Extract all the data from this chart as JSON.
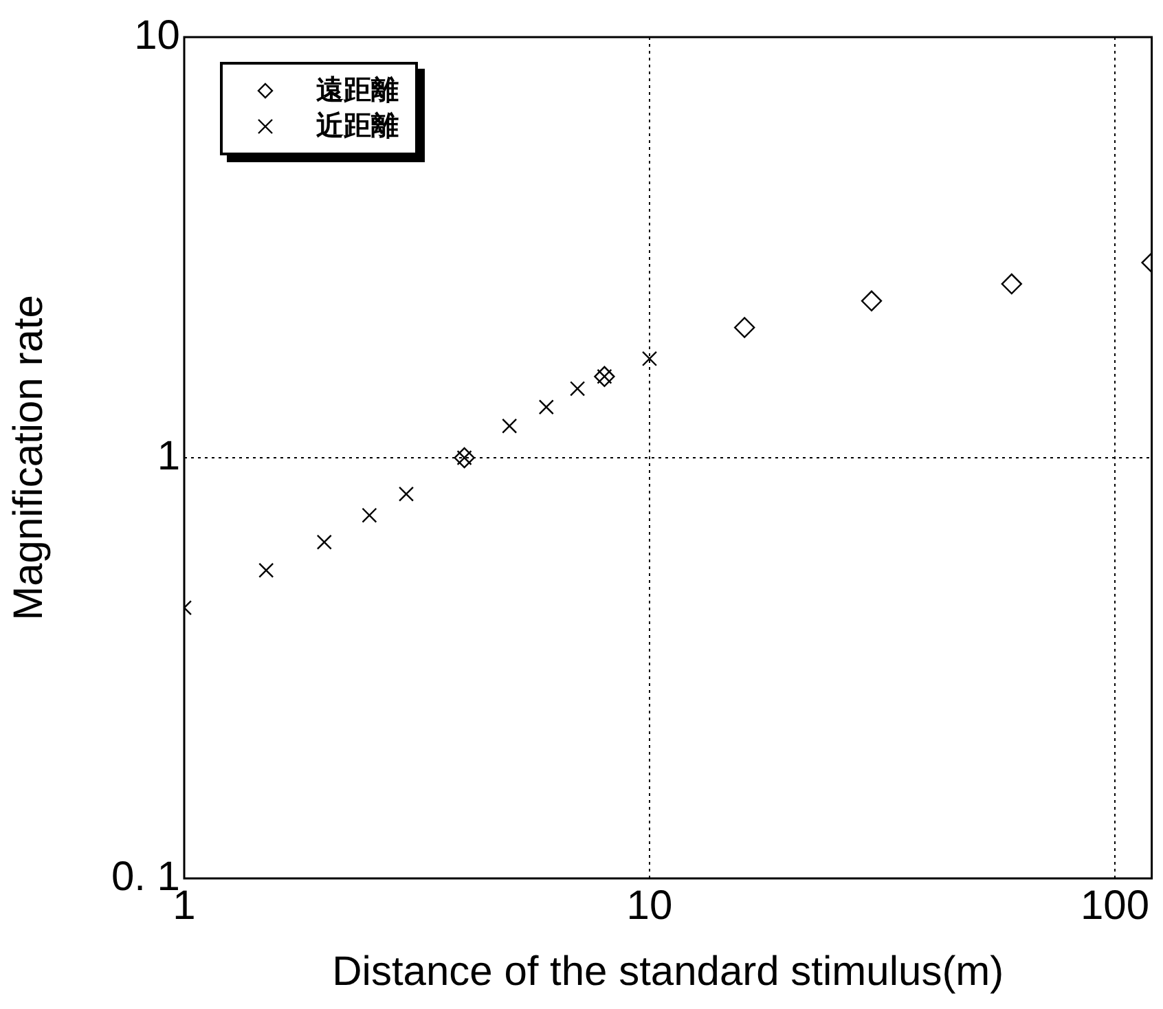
{
  "chart_data": {
    "type": "scatter",
    "xlabel": "Distance of the standard stimulus(m)",
    "ylabel": "Magnification rate",
    "log": "xy",
    "grid": true,
    "legend": "top left",
    "xlim": [
      1,
      120
    ],
    "ylim": [
      0.1,
      10
    ],
    "xticks": [
      1,
      10,
      100
    ],
    "yticks": [
      {
        "value": 0.1,
        "label": "0. 1"
      },
      1,
      10
    ],
    "series": [
      {
        "name": "遠距離",
        "color": "#000000",
        "marker": "diamond",
        "x": [
          4,
          8,
          16,
          30,
          60,
          120
        ],
        "values": [
          1.0,
          1.56,
          2.04,
          2.36,
          2.59,
          2.91
        ]
      },
      {
        "name": "近距離",
        "color": "#000000",
        "marker": "cross",
        "x": [
          1,
          1.5,
          2,
          2.5,
          3,
          4,
          5,
          6,
          7,
          8,
          10
        ],
        "values": [
          0.44,
          0.54,
          0.63,
          0.73,
          0.82,
          1.0,
          1.19,
          1.32,
          1.46,
          1.56,
          1.72
        ]
      }
    ]
  }
}
